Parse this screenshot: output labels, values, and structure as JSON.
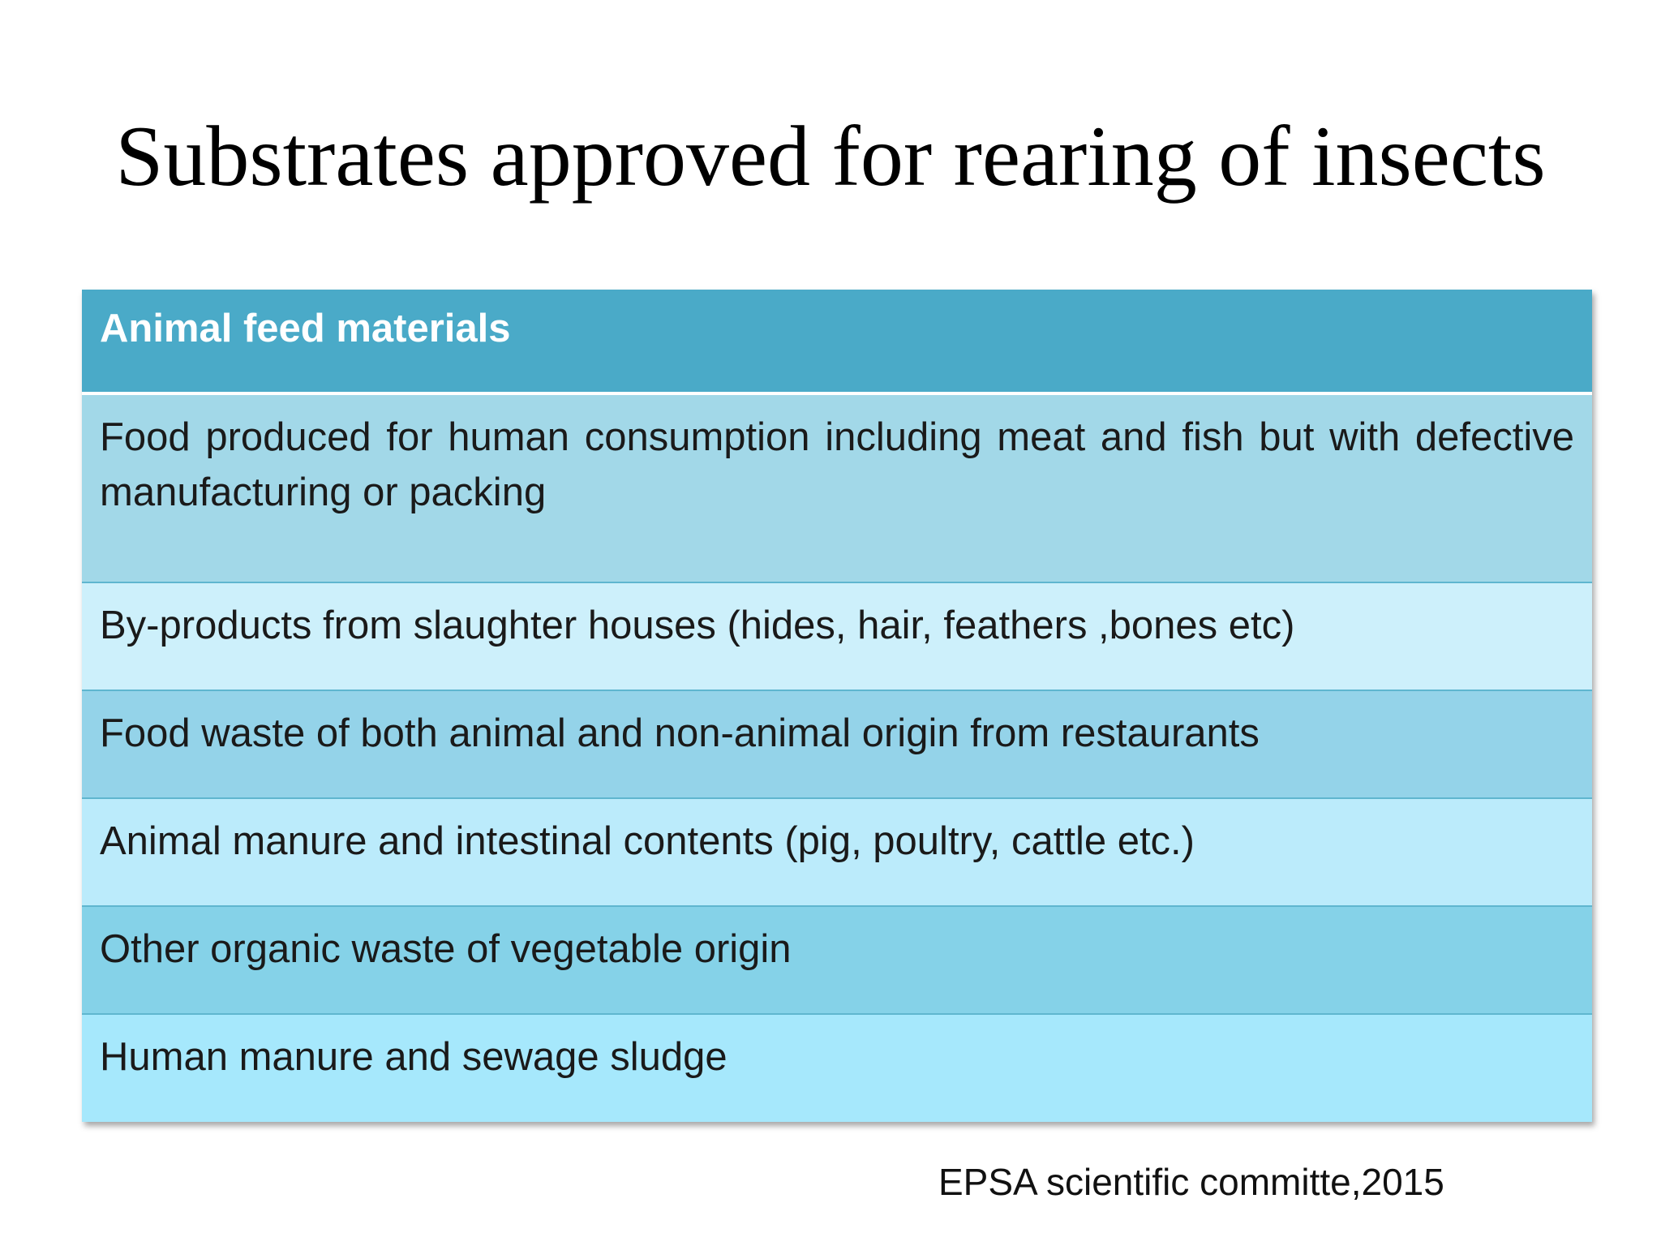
{
  "slide": {
    "title": "Substrates approved for rearing of insects",
    "table": {
      "header": "Animal feed materials",
      "rows": [
        {
          "text": "Food produced for human consumption including meat and fish but with defective manufacturing or packing",
          "color": "#a2d8e8"
        },
        {
          "text": "By-products from slaughter houses (hides, hair, feathers ,bones etc)",
          "color": "#cdf0fb"
        },
        {
          "text": "Food waste of both animal and non-animal origin from restaurants",
          "color": "#94d3e9"
        },
        {
          "text": "Animal manure and intestinal contents (pig, poultry, cattle etc.)",
          "color": "#bbebfb"
        },
        {
          "text": "Other organic waste of vegetable origin",
          "color": "#85d2e8"
        },
        {
          "text": "Human manure and sewage sludge",
          "color": "#a6e8fc"
        }
      ],
      "header_color": "#4aaac8"
    },
    "source": "EPSA scientific committe,2015"
  }
}
